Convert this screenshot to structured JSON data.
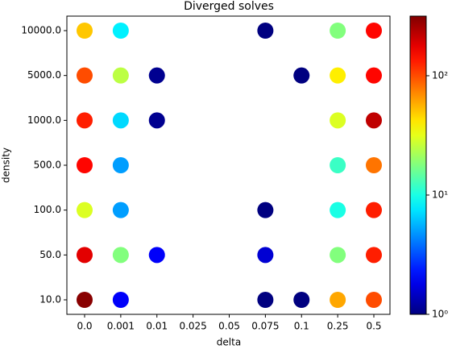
{
  "chart_data": {
    "type": "scatter",
    "title": "Diverged solves",
    "xlabel": "delta",
    "ylabel": "density",
    "xcategories": [
      "0.0",
      "0.001",
      "0.01",
      "0.025",
      "0.05",
      "0.075",
      "0.1",
      "0.25",
      "0.5"
    ],
    "ycategories": [
      "10.0",
      "50.0",
      "100.0",
      "500.0",
      "1000.0",
      "5000.0",
      "10000.0"
    ],
    "colormap": "jet",
    "clim": [
      1,
      316
    ],
    "cscale": "log",
    "cticks": [
      {
        "value": 1,
        "label": "10⁰"
      },
      {
        "value": 10,
        "label": "10¹"
      },
      {
        "value": 100,
        "label": "10²"
      }
    ],
    "series": [
      {
        "x": [
          "0.0",
          "0.0",
          "0.0",
          "0.0",
          "0.0",
          "0.0",
          "0.0",
          "0.001",
          "0.001",
          "0.001",
          "0.001",
          "0.001",
          "0.001",
          "0.001",
          "0.01",
          "0.01",
          "0.01",
          "0.075",
          "0.075",
          "0.075",
          "0.075",
          "0.1",
          "0.1",
          "0.25",
          "0.25",
          "0.25",
          "0.25",
          "0.25",
          "0.25",
          "0.25",
          "0.5",
          "0.5",
          "0.5",
          "0.5",
          "0.5",
          "0.5",
          "0.5"
        ],
        "y": [
          "10000.0",
          "5000.0",
          "1000.0",
          "500.0",
          "100.0",
          "50.0",
          "10.0",
          "10000.0",
          "5000.0",
          "1000.0",
          "500.0",
          "100.0",
          "50.0",
          "10.0",
          "5000.0",
          "1000.0",
          "50.0",
          "10000.0",
          "100.0",
          "50.0",
          "10.0",
          "5000.0",
          "10.0",
          "10000.0",
          "5000.0",
          "1000.0",
          "500.0",
          "100.0",
          "50.0",
          "10.0",
          "10000.0",
          "5000.0",
          "1000.0",
          "500.0",
          "100.0",
          "50.0",
          "10.0"
        ],
        "values": [
          50,
          100,
          130,
          150,
          30,
          180,
          300,
          8,
          25,
          7,
          5,
          5,
          18,
          2,
          1.1,
          1.1,
          2,
          1,
          1,
          1.6,
          1,
          1,
          1,
          18,
          40,
          30,
          12,
          10,
          18,
          60,
          150,
          150,
          220,
          80,
          130,
          130,
          100
        ]
      }
    ]
  }
}
